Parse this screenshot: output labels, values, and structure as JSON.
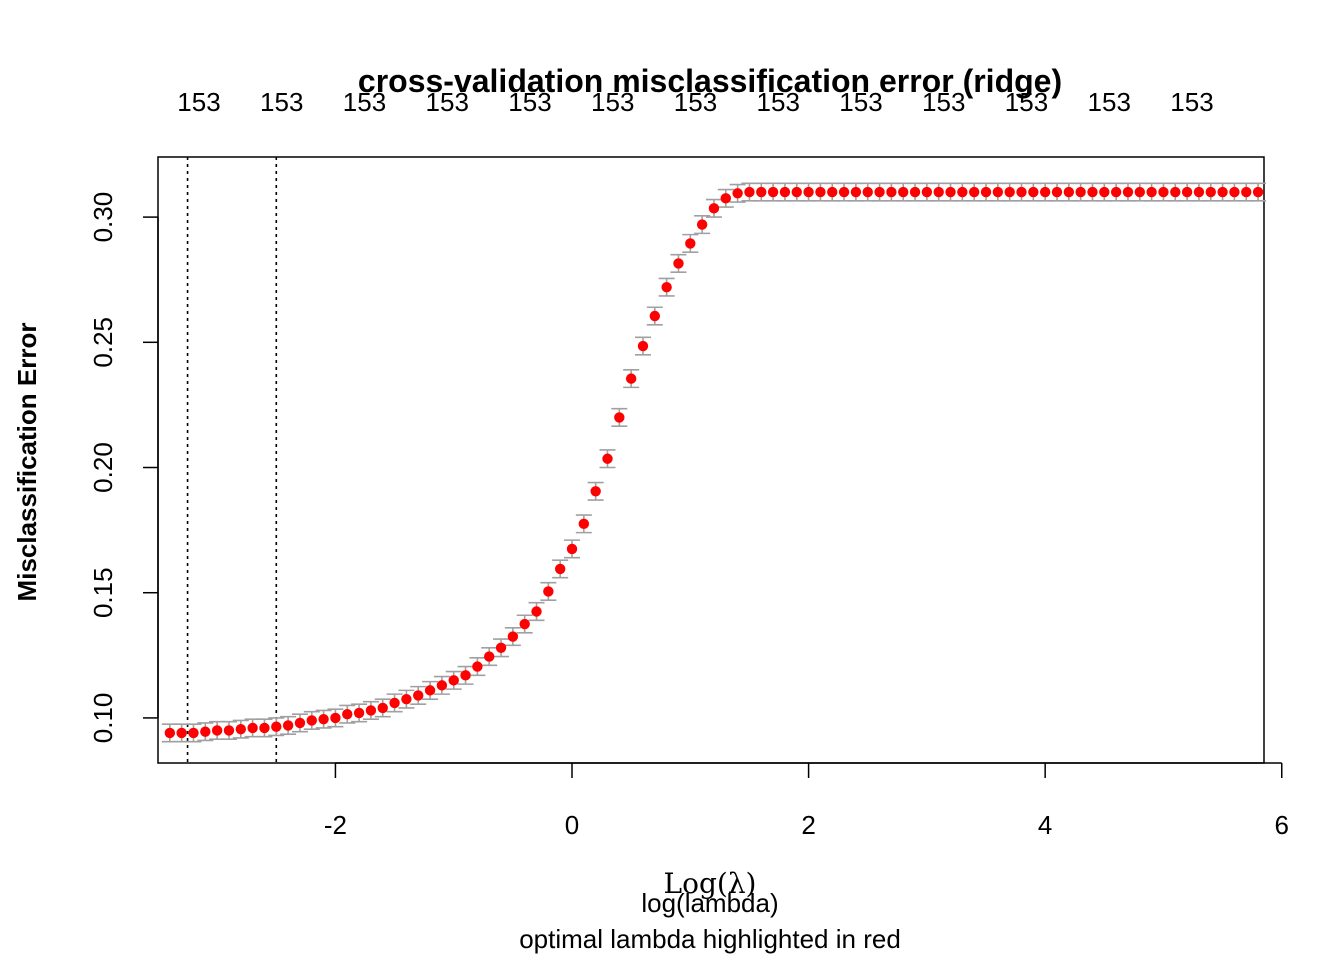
{
  "chart_data": {
    "type": "scatter",
    "title": "cross-validation misclassification error (ridge)",
    "xlabel": "Log(λ)",
    "xlabel_overlay": "log(lambda)",
    "subtitle": "optimal lambda highlighted in red",
    "ylabel": "Misclassification Error",
    "xlim": [
      -3.5,
      5.85
    ],
    "ylim": [
      0.082,
      0.324
    ],
    "x_ticks": [
      -2,
      0,
      2,
      4,
      6
    ],
    "x_tick_labels": [
      "-2",
      "0",
      "2",
      "4",
      "6"
    ],
    "y_ticks": [
      0.1,
      0.15,
      0.2,
      0.25,
      0.3
    ],
    "y_tick_labels": [
      "0.10",
      "0.15",
      "0.20",
      "0.25",
      "0.30"
    ],
    "top_axis_labels": [
      "153",
      "153",
      "153",
      "153",
      "153",
      "153",
      "153",
      "153",
      "153",
      "153",
      "153",
      "153",
      "153"
    ],
    "vlines_x": [
      -3.25,
      -2.5
    ],
    "point_color": "#ff0000",
    "errorbar_color": "#a0a0a0",
    "series": [
      {
        "x": [
          -3.4,
          -3.3,
          -3.2,
          -3.1,
          -3.0,
          -2.9,
          -2.8,
          -2.7,
          -2.6,
          -2.5,
          -2.4,
          -2.3,
          -2.2,
          -2.1,
          -2.0,
          -1.9,
          -1.8,
          -1.7,
          -1.6,
          -1.5,
          -1.4,
          -1.3,
          -1.2,
          -1.1,
          -1.0,
          -0.9,
          -0.8,
          -0.7,
          -0.6,
          -0.5,
          -0.4,
          -0.3,
          -0.2,
          -0.1,
          0.0,
          0.1,
          0.2,
          0.3,
          0.4,
          0.5,
          0.6,
          0.7,
          0.8,
          0.9,
          1.0,
          1.1,
          1.2,
          1.3,
          1.4,
          1.5,
          1.6,
          1.7,
          1.8,
          1.9,
          2.0,
          2.1,
          2.2,
          2.3,
          2.4,
          2.5,
          2.6,
          2.7,
          2.8,
          2.9,
          3.0,
          3.1,
          3.2,
          3.3,
          3.4,
          3.5,
          3.6,
          3.7,
          3.8,
          3.9,
          4.0,
          4.1,
          4.2,
          4.3,
          4.4,
          4.5,
          4.6,
          4.7,
          4.8,
          4.9,
          5.0,
          5.1,
          5.2,
          5.3,
          5.4,
          5.5,
          5.6,
          5.7,
          5.8
        ],
        "y": [
          0.094,
          0.094,
          0.094,
          0.0945,
          0.095,
          0.095,
          0.0955,
          0.096,
          0.096,
          0.0965,
          0.097,
          0.098,
          0.099,
          0.0995,
          0.1,
          0.1015,
          0.102,
          0.103,
          0.104,
          0.106,
          0.1075,
          0.109,
          0.111,
          0.113,
          0.115,
          0.117,
          0.1205,
          0.1245,
          0.128,
          0.1325,
          0.1375,
          0.1425,
          0.1505,
          0.1595,
          0.1675,
          0.1775,
          0.1905,
          0.2035,
          0.22,
          0.2355,
          0.2485,
          0.2605,
          0.272,
          0.2815,
          0.2895,
          0.297,
          0.3035,
          0.3075,
          0.3095,
          0.31,
          0.31,
          0.31,
          0.31,
          0.31,
          0.31,
          0.31,
          0.31,
          0.31,
          0.31,
          0.31,
          0.31,
          0.31,
          0.31,
          0.31,
          0.31,
          0.31,
          0.31,
          0.31,
          0.31,
          0.31,
          0.31,
          0.31,
          0.31,
          0.31,
          0.31,
          0.31,
          0.31,
          0.31,
          0.31,
          0.31,
          0.31,
          0.31,
          0.31,
          0.31,
          0.31,
          0.31,
          0.31,
          0.31,
          0.31,
          0.31,
          0.31,
          0.31,
          0.31
        ],
        "err": 0.0035
      }
    ]
  }
}
